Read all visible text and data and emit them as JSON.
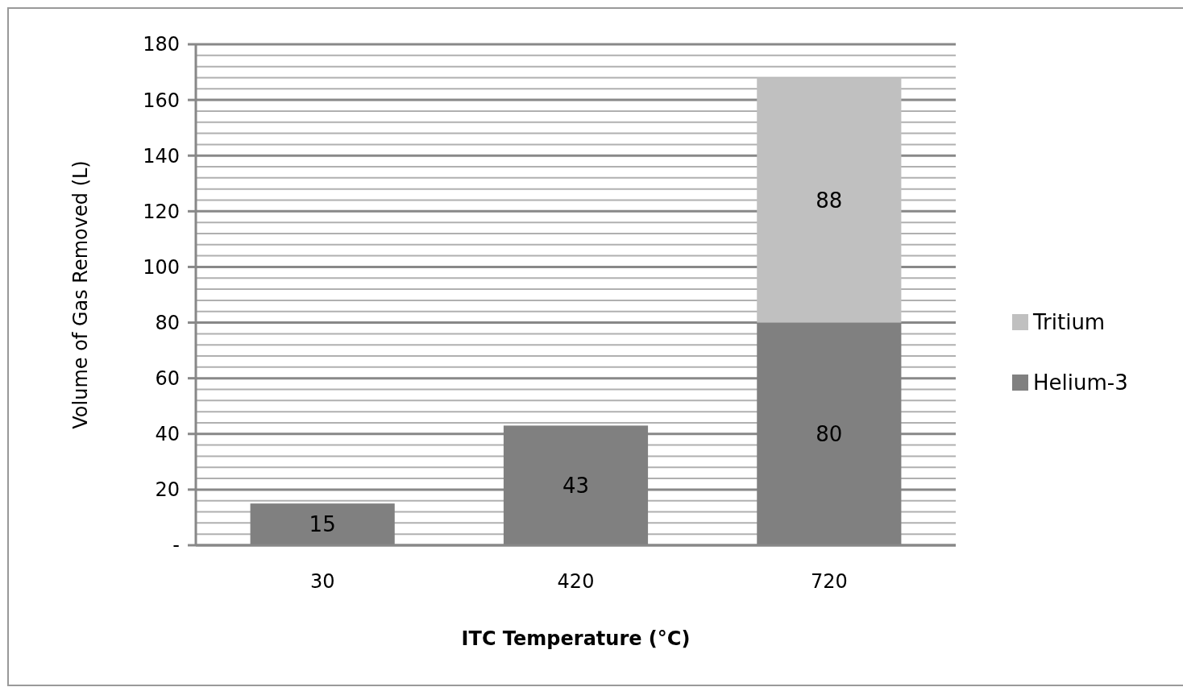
{
  "chart_data": {
    "type": "bar",
    "stacked": true,
    "xlabel": "ITC Temperature (°C)",
    "ylabel": "Volume of Gas  Removed (L)",
    "categories": [
      "30",
      "420",
      "720"
    ],
    "series": [
      {
        "name": "Helium-3",
        "color": "#808080",
        "values": [
          15,
          43,
          80
        ]
      },
      {
        "name": "Tritium",
        "color": "#c0c0c0",
        "values": [
          null,
          null,
          88
        ]
      }
    ],
    "data_labels": true,
    "grid": "y",
    "legend": "right",
    "ylim": [
      0,
      180
    ],
    "yticks": [
      {
        "value": 0,
        "label": "-"
      },
      {
        "value": 4,
        "label": null
      },
      {
        "value": 8,
        "label": null
      },
      {
        "value": 12,
        "label": null
      },
      {
        "value": 16,
        "label": null
      },
      20,
      {
        "value": 24,
        "label": null
      },
      {
        "value": 28,
        "label": null
      },
      {
        "value": 32,
        "label": null
      },
      {
        "value": 36,
        "label": null
      },
      40,
      {
        "value": 44,
        "label": null
      },
      {
        "value": 48,
        "label": null
      },
      {
        "value": 52,
        "label": null
      },
      {
        "value": 56,
        "label": null
      },
      60,
      {
        "value": 64,
        "label": null
      },
      {
        "value": 68,
        "label": null
      },
      {
        "value": 72,
        "label": null
      },
      {
        "value": 76,
        "label": null
      },
      80,
      {
        "value": 84,
        "label": null
      },
      {
        "value": 88,
        "label": null
      },
      {
        "value": 92,
        "label": null
      },
      {
        "value": 96,
        "label": null
      },
      100,
      {
        "value": 104,
        "label": null
      },
      {
        "value": 108,
        "label": null
      },
      {
        "value": 112,
        "label": null
      },
      {
        "value": 116,
        "label": null
      },
      120,
      {
        "value": 124,
        "label": null
      },
      {
        "value": 128,
        "label": null
      },
      {
        "value": 132,
        "label": null
      },
      {
        "value": 136,
        "label": null
      },
      140,
      {
        "value": 144,
        "label": null
      },
      {
        "value": 148,
        "label": null
      },
      {
        "value": 152,
        "label": null
      },
      {
        "value": 156,
        "label": null
      },
      160,
      {
        "value": 164,
        "label": null
      },
      {
        "value": 168,
        "label": null
      },
      {
        "value": 172,
        "label": null
      },
      {
        "value": 176,
        "label": null
      },
      180
    ]
  }
}
